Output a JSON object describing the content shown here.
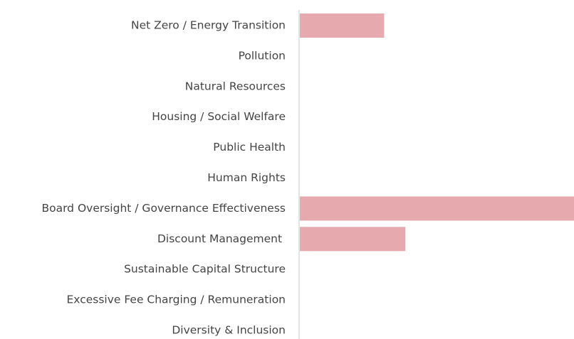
{
  "chart_data": {
    "type": "bar",
    "orientation": "horizontal",
    "categories": [
      "Net Zero / Energy Transition",
      "Pollution",
      "Natural Resources",
      "Housing / Social Welfare",
      "Public Health",
      "Human Rights",
      "Board Oversight / Governance Effectiveness",
      "Discount Management ",
      "Sustainable Capital Structure",
      "Excessive Fee Charging / Remuneration",
      "Diversity & Inclusion"
    ],
    "values": [
      4,
      0,
      0,
      0,
      0,
      0,
      13,
      5,
      0,
      0,
      0
    ],
    "color": "#e5a9ae",
    "xlim": [
      0,
      13
    ]
  }
}
